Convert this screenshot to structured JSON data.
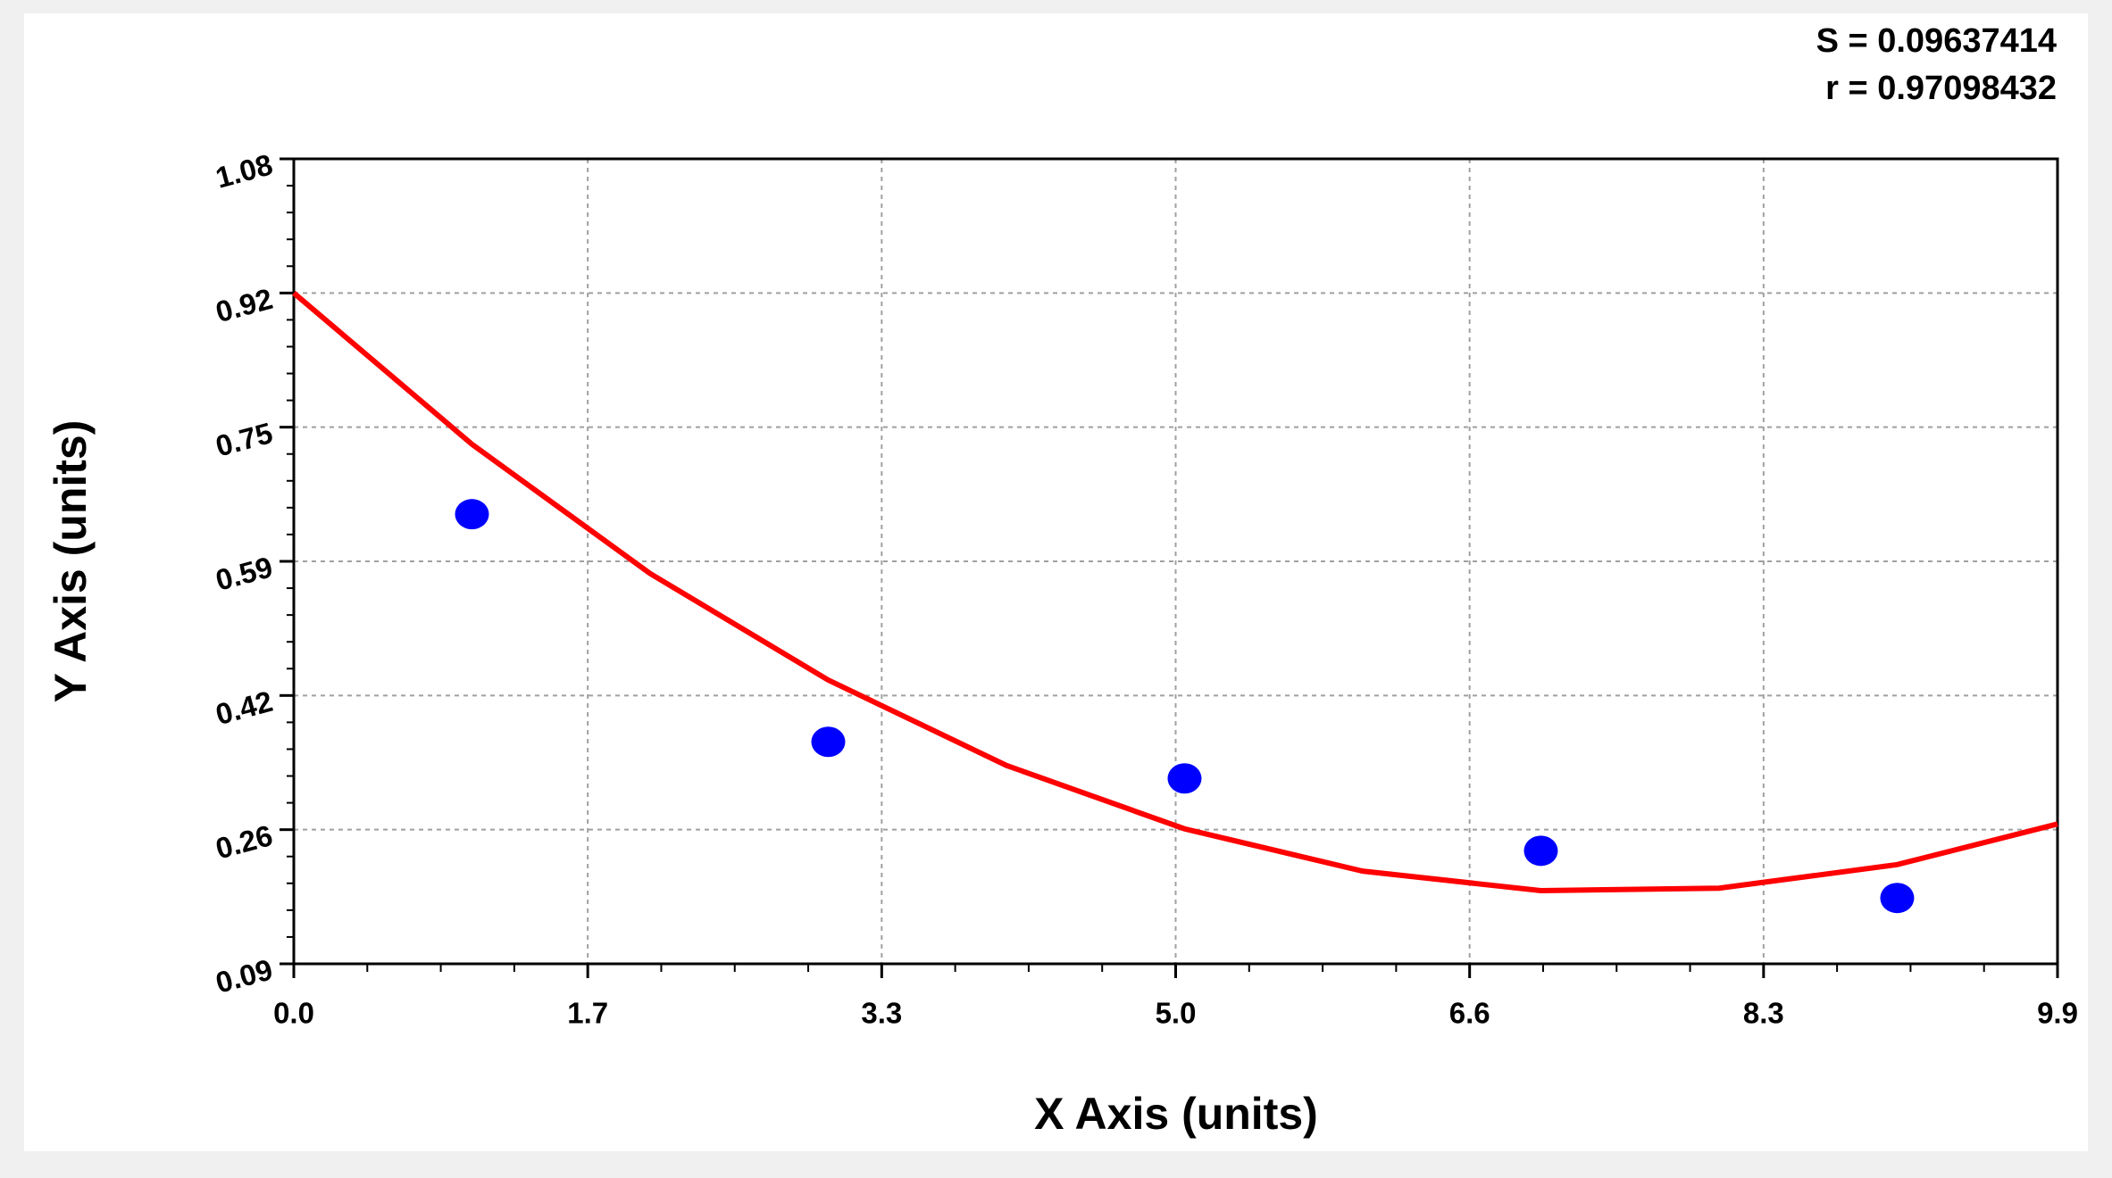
{
  "chart_data": {
    "type": "scatter",
    "annotations": [
      "S = 0.09637414",
      "r = 0.97098432"
    ],
    "x_label": "X Axis (units)",
    "y_label": "Y Axis (units)",
    "xlim": [
      0,
      9.9
    ],
    "ylim": [
      0.09,
      1.08
    ],
    "xticks": [
      {
        "value": 0,
        "label": "0.0"
      },
      {
        "value": 1.65,
        "label": "1.7"
      },
      {
        "value": 3.3,
        "label": "3.3"
      },
      {
        "value": 4.95,
        "label": "5.0"
      },
      {
        "value": 6.6,
        "label": "6.6"
      },
      {
        "value": 8.25,
        "label": "8.3"
      },
      {
        "value": 9.9,
        "label": "9.9"
      }
    ],
    "yticks": [
      {
        "value": 0.09,
        "label": "0.09"
      },
      {
        "value": 0.255,
        "label": "0.26"
      },
      {
        "value": 0.42,
        "label": "0.42"
      },
      {
        "value": 0.585,
        "label": "0.59"
      },
      {
        "value": 0.75,
        "label": "0.75"
      },
      {
        "value": 0.915,
        "label": "0.92"
      },
      {
        "value": 1.08,
        "label": "1.08"
      }
    ],
    "grid": true,
    "series": [
      {
        "type": "line",
        "color": "#ff0000",
        "x": [
          0,
          1,
          2,
          3,
          4,
          5,
          6,
          7,
          8,
          9,
          9.9
        ],
        "values": [
          0.915,
          0.729,
          0.57,
          0.439,
          0.334,
          0.256,
          0.204,
          0.18,
          0.183,
          0.212,
          0.262
        ]
      },
      {
        "type": "scatter",
        "color": "#0000ff",
        "x": [
          1,
          3,
          5,
          7,
          9
        ],
        "values": [
          0.643,
          0.363,
          0.318,
          0.229,
          0.171
        ]
      }
    ]
  }
}
